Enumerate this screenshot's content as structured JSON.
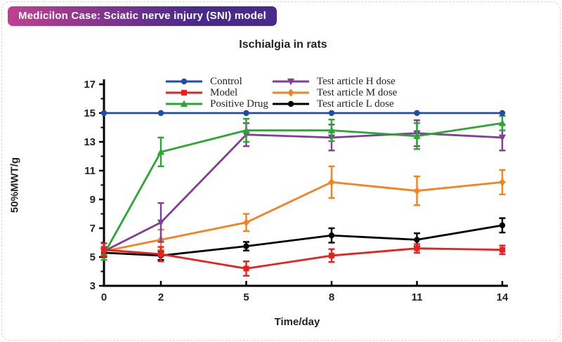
{
  "header": {
    "label": "Medicilon Case: Sciatic nerve injury (SNI) model",
    "gradient_left": "#c04090",
    "gradient_right": "#482a8c"
  },
  "chart_data": {
    "type": "line",
    "title": "Ischialgia in rats",
    "xlabel": "Time/day",
    "ylabel": "50%MWT/g",
    "x": [
      0,
      2,
      5,
      8,
      11,
      14
    ],
    "xticks": [
      0,
      2,
      5,
      8,
      11,
      14
    ],
    "xlim": [
      0,
      14.2
    ],
    "ylim": [
      3,
      17
    ],
    "yticks": [
      3,
      5,
      7,
      9,
      11,
      13,
      15,
      17
    ],
    "grid": false,
    "error_bars": true,
    "legend_position": "inside-top, two columns",
    "axis_color": "#000000",
    "series": [
      {
        "name": "Control",
        "color": "#1f4da6",
        "marker": "circle",
        "values": [
          15,
          15,
          15,
          15,
          15,
          15
        ],
        "errors": [
          0,
          0,
          0,
          0,
          0,
          0
        ]
      },
      {
        "name": "Model",
        "color": "#e8201e",
        "marker": "square",
        "values": [
          5.5,
          5.2,
          4.2,
          5.1,
          5.6,
          5.5
        ],
        "errors": [
          0.45,
          0.5,
          0.5,
          0.45,
          0.3,
          0.3
        ]
      },
      {
        "name": "Positive Drug",
        "color": "#2ca632",
        "marker": "triangle-up",
        "values": [
          5.2,
          12.3,
          13.8,
          13.8,
          13.4,
          14.3
        ],
        "errors": [
          0.4,
          1.0,
          0.8,
          0.75,
          0.9,
          0.5
        ]
      },
      {
        "name": "Test article H dose",
        "color": "#7e3f97",
        "marker": "triangle-down",
        "values": [
          5.4,
          7.4,
          13.5,
          13.3,
          13.6,
          13.3
        ],
        "errors": [
          0.3,
          1.35,
          0.8,
          0.9,
          0.9,
          0.9
        ]
      },
      {
        "name": "Test article M dose",
        "color": "#f6821f",
        "marker": "diamond",
        "values": [
          5.4,
          6.2,
          7.4,
          10.2,
          9.6,
          10.2
        ],
        "errors": [
          0.3,
          0.7,
          0.6,
          1.1,
          1.0,
          0.85
        ]
      },
      {
        "name": "Test article L dose",
        "color": "#000000",
        "marker": "circle",
        "values": [
          5.3,
          5.1,
          5.75,
          6.5,
          6.2,
          7.2
        ],
        "errors": [
          0.3,
          0.3,
          0.3,
          0.5,
          0.45,
          0.5
        ]
      }
    ]
  }
}
